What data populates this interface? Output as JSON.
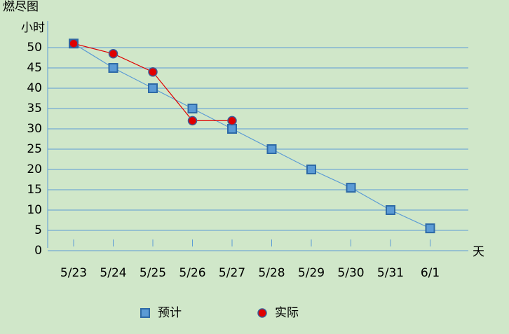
{
  "chart_data": {
    "type": "line",
    "title": "燃尽图",
    "y_label": "小时",
    "x_label": "天",
    "categories": [
      "5/23",
      "5/24",
      "5/25",
      "5/26",
      "5/27",
      "5/28",
      "5/29",
      "5/30",
      "5/31",
      "6/1"
    ],
    "series": [
      {
        "name": "预计",
        "color": "#5b9bd5",
        "marker": "square",
        "values": [
          51,
          45,
          40,
          35,
          30,
          25,
          20,
          15.5,
          10,
          5.5
        ]
      },
      {
        "name": "实际",
        "color": "#e00000",
        "marker": "circle",
        "values": [
          51,
          48.5,
          44,
          32,
          32,
          null,
          null,
          null,
          null,
          null
        ]
      }
    ],
    "ylim": [
      0,
      50
    ],
    "yticks": [
      0,
      5,
      10,
      15,
      20,
      25,
      30,
      35,
      40,
      45,
      50
    ],
    "grid": true
  }
}
